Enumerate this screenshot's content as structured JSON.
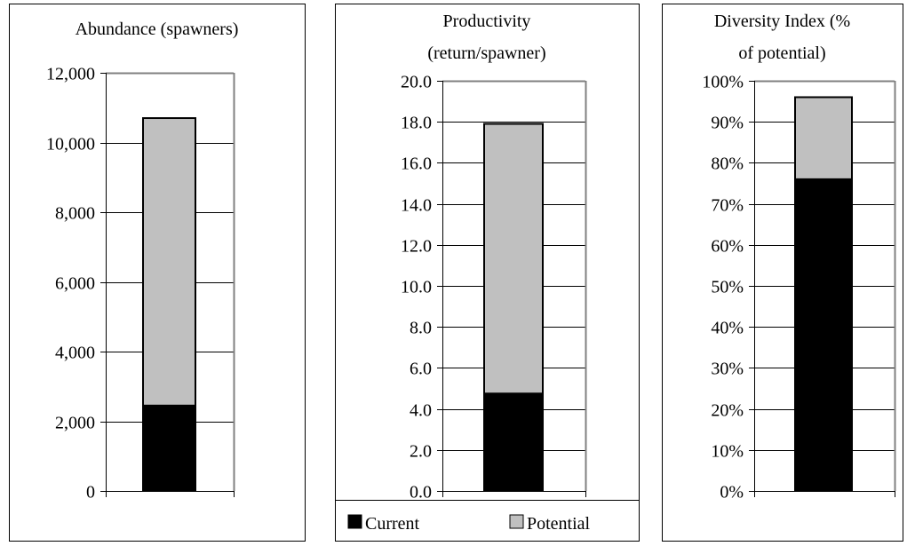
{
  "chart_data": [
    {
      "type": "bar",
      "stacked": true,
      "title": "Abundance (spawners)",
      "categories": [
        ""
      ],
      "series": [
        {
          "name": "Current",
          "values": [
            2450
          ]
        },
        {
          "name": "Potential",
          "values": [
            8250
          ]
        }
      ],
      "ylim": [
        0,
        12000
      ],
      "yticks": [
        "0",
        "2,000",
        "4,000",
        "6,000",
        "8,000",
        "10,000",
        "12,000"
      ],
      "grid": true
    },
    {
      "type": "bar",
      "stacked": true,
      "title": "Productivity (return/spawner)",
      "title_lines": [
        "Productivity",
        "(return/spawner)"
      ],
      "categories": [
        ""
      ],
      "series": [
        {
          "name": "Current",
          "values": [
            4.75
          ]
        },
        {
          "name": "Potential",
          "values": [
            13.15
          ]
        }
      ],
      "ylim": [
        0,
        20
      ],
      "yticks": [
        "0.0",
        "2.0",
        "4.0",
        "6.0",
        "8.0",
        "10.0",
        "12.0",
        "14.0",
        "16.0",
        "18.0",
        "20.0"
      ],
      "grid": true
    },
    {
      "type": "bar",
      "stacked": true,
      "title": "Diversity Index (% of potential)",
      "title_lines": [
        "Diversity Index (%",
        "of potential)"
      ],
      "categories": [
        ""
      ],
      "series": [
        {
          "name": "Current",
          "values": [
            76
          ]
        },
        {
          "name": "Potential",
          "values": [
            20
          ]
        }
      ],
      "ylim": [
        0,
        100
      ],
      "yticks": [
        "0%",
        "10%",
        "20%",
        "30%",
        "40%",
        "50%",
        "60%",
        "70%",
        "80%",
        "90%",
        "100%"
      ],
      "grid": true
    }
  ],
  "legend": {
    "placement": "bottom (under middle panel)",
    "items": [
      {
        "label": "Current",
        "color": "#000000"
      },
      {
        "label": "Potential",
        "color": "#c0c0c0"
      }
    ]
  },
  "colors": {
    "current": "#000000",
    "potential": "#c0c0c0",
    "plot_border": "#808080",
    "grid": "#000000"
  }
}
